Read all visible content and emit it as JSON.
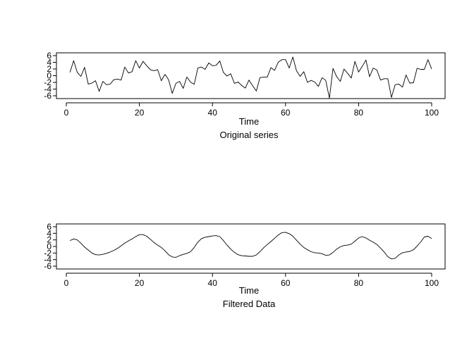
{
  "chart_data": [
    {
      "type": "line",
      "title": "",
      "xlabel": "Time",
      "ylabel": "",
      "caption": "Original series",
      "xlim": [
        0,
        100
      ],
      "ylim": [
        -6,
        6
      ],
      "xticks": [
        0,
        20,
        40,
        60,
        80,
        100
      ],
      "yticks": [
        -6,
        -4,
        -2,
        0,
        2,
        4,
        6
      ],
      "grid": false,
      "x": [
        1,
        2,
        3,
        4,
        5,
        6,
        7,
        8,
        9,
        10,
        11,
        12,
        13,
        14,
        15,
        16,
        17,
        18,
        19,
        20,
        21,
        22,
        23,
        24,
        25,
        26,
        27,
        28,
        29,
        30,
        31,
        32,
        33,
        34,
        35,
        36,
        37,
        38,
        39,
        40,
        41,
        42,
        43,
        44,
        45,
        46,
        47,
        48,
        49,
        50,
        51,
        52,
        53,
        54,
        55,
        56,
        57,
        58,
        59,
        60,
        61,
        62,
        63,
        64,
        65,
        66,
        67,
        68,
        69,
        70,
        71,
        72,
        73,
        74,
        75,
        76,
        77,
        78,
        79,
        80,
        81,
        82,
        83,
        84,
        85,
        86,
        87,
        88,
        89,
        90,
        91,
        92,
        93,
        94,
        95,
        96,
        97,
        98,
        99,
        100
      ],
      "series": [
        {
          "values": [
            1.0,
            4.5,
            1.0,
            -0.2,
            2.5,
            -2.5,
            -2.2,
            -1.5,
            -4.7,
            -1.7,
            -2.7,
            -2.5,
            -1.2,
            -1.0,
            -1.3,
            2.6,
            0.8,
            1.2,
            4.5,
            2.3,
            4.3,
            3.0,
            1.8,
            1.5,
            1.8,
            -1.5,
            0.4,
            -1.2,
            -5.3,
            -2.3,
            -1.7,
            -3.8,
            -0.4,
            -1.9,
            -2.6,
            2.3,
            2.6,
            1.9,
            3.8,
            3.0,
            3.1,
            4.4,
            1.0,
            -0.1,
            0.6,
            -2.3,
            -1.9,
            -2.9,
            -3.7,
            -1.3,
            -3.0,
            -4.6,
            -0.6,
            -0.4,
            -0.4,
            2.4,
            1.6,
            4.0,
            4.8,
            4.8,
            2.3,
            5.6,
            1.5,
            -0.2,
            1.2,
            -2.0,
            -1.4,
            -1.9,
            -3.2,
            -0.6,
            -1.4,
            -6.7,
            2.2,
            -0.3,
            -1.7,
            2.0,
            0.7,
            -0.7,
            4.3,
            1.1,
            2.8,
            4.7,
            -0.3,
            2.3,
            1.7,
            -1.3,
            -0.9,
            -0.9,
            -6.5,
            -2.7,
            -2.5,
            -3.4,
            0.2,
            -2.2,
            -2.1,
            2.2,
            1.9,
            1.9,
            4.8,
            2.0
          ]
        }
      ]
    },
    {
      "type": "line",
      "title": "",
      "xlabel": "Time",
      "ylabel": "",
      "caption": "Filtered Data",
      "xlim": [
        0,
        100
      ],
      "ylim": [
        -6,
        6
      ],
      "xticks": [
        0,
        20,
        40,
        60,
        80,
        100
      ],
      "yticks": [
        -6,
        -4,
        -2,
        0,
        2,
        4,
        6
      ],
      "grid": false,
      "x": [
        1,
        2,
        3,
        4,
        5,
        6,
        7,
        8,
        9,
        10,
        11,
        12,
        13,
        14,
        15,
        16,
        17,
        18,
        19,
        20,
        21,
        22,
        23,
        24,
        25,
        26,
        27,
        28,
        29,
        30,
        31,
        32,
        33,
        34,
        35,
        36,
        37,
        38,
        39,
        40,
        41,
        42,
        43,
        44,
        45,
        46,
        47,
        48,
        49,
        50,
        51,
        52,
        53,
        54,
        55,
        56,
        57,
        58,
        59,
        60,
        61,
        62,
        63,
        64,
        65,
        66,
        67,
        68,
        69,
        70,
        71,
        72,
        73,
        74,
        75,
        76,
        77,
        78,
        79,
        80,
        81,
        82,
        83,
        84,
        85,
        86,
        87,
        88,
        89,
        90,
        91,
        92,
        93,
        94,
        95,
        96,
        97,
        98,
        99,
        100
      ],
      "series": [
        {
          "values": [
            1.8,
            2.3,
            2.0,
            1.0,
            -0.2,
            -1.1,
            -2.0,
            -2.5,
            -2.6,
            -2.4,
            -2.1,
            -1.7,
            -1.2,
            -0.6,
            0.2,
            1.0,
            1.7,
            2.3,
            3.0,
            3.6,
            3.6,
            3.1,
            2.2,
            1.2,
            0.4,
            -0.3,
            -1.3,
            -2.5,
            -3.2,
            -3.3,
            -2.8,
            -2.4,
            -2.1,
            -1.6,
            -0.3,
            1.3,
            2.4,
            2.8,
            3.0,
            3.2,
            3.3,
            3.0,
            1.8,
            0.4,
            -0.8,
            -1.8,
            -2.5,
            -2.8,
            -2.9,
            -3.0,
            -3.0,
            -2.6,
            -1.6,
            -0.4,
            0.6,
            1.5,
            2.5,
            3.5,
            4.2,
            4.3,
            3.9,
            3.1,
            1.9,
            0.7,
            -0.3,
            -1.0,
            -1.6,
            -1.9,
            -2.0,
            -2.2,
            -2.7,
            -2.6,
            -1.8,
            -0.8,
            -0.1,
            0.3,
            0.4,
            0.7,
            1.6,
            2.6,
            3.0,
            2.6,
            1.9,
            1.3,
            0.6,
            -0.5,
            -1.7,
            -3.1,
            -3.8,
            -3.6,
            -2.6,
            -1.9,
            -1.7,
            -1.5,
            -1.0,
            0.1,
            1.4,
            2.9,
            3.1,
            2.4
          ]
        }
      ]
    }
  ]
}
